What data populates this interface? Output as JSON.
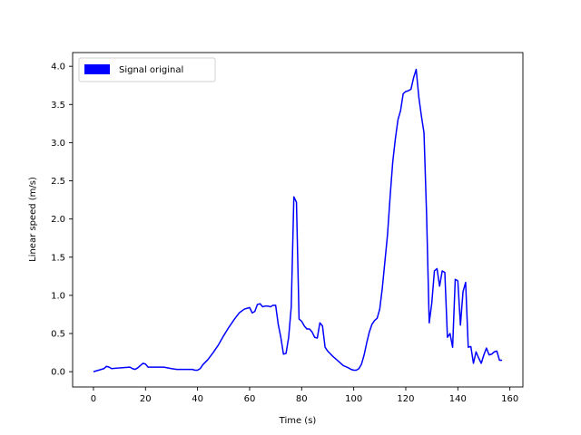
{
  "chart_data": {
    "type": "line",
    "title": "",
    "xlabel": "Time (s)",
    "ylabel": "Linear speed (m/s)",
    "xlim": [
      -8,
      165
    ],
    "ylim": [
      -0.2,
      4.18
    ],
    "xticks": [
      "0",
      "20",
      "40",
      "60",
      "80",
      "100",
      "120",
      "140",
      "160"
    ],
    "xtick_values": [
      0,
      20,
      40,
      60,
      80,
      100,
      120,
      140,
      160
    ],
    "yticks": [
      "0.0",
      "0.5",
      "1.0",
      "1.5",
      "2.0",
      "2.5",
      "3.0",
      "3.5",
      "4.0"
    ],
    "ytick_values": [
      0.0,
      0.5,
      1.0,
      1.5,
      2.0,
      2.5,
      3.0,
      3.5,
      4.0
    ],
    "grid": false,
    "legend": {
      "position": "top-left",
      "entries": [
        {
          "label": "Signal original",
          "color": "#0000ff"
        }
      ]
    },
    "series": [
      {
        "name": "Signal original",
        "color": "#0000ff",
        "x": [
          0,
          2,
          3,
          4,
          5,
          6,
          7,
          10,
          14,
          15,
          16,
          17,
          18,
          19,
          20,
          21,
          22,
          25,
          27,
          30,
          32,
          35,
          38,
          39,
          40,
          41,
          42,
          44,
          46,
          48,
          50,
          52,
          54,
          56,
          58,
          60,
          61,
          62,
          63,
          64,
          65,
          66,
          67,
          68,
          69,
          70,
          71,
          72,
          73,
          74,
          75,
          76,
          77,
          78,
          79,
          80,
          81,
          82,
          83,
          84,
          85,
          86,
          87,
          88,
          89,
          90,
          92,
          94,
          96,
          98,
          99,
          100,
          101,
          102,
          103,
          104,
          105,
          106,
          107,
          108,
          109,
          110,
          111,
          112,
          113,
          114,
          115,
          116,
          117,
          118,
          119,
          120,
          121,
          122,
          123,
          124,
          125,
          126,
          127,
          128,
          129,
          130,
          131,
          132,
          133,
          134,
          135,
          136,
          137,
          138,
          139,
          140,
          141,
          142,
          143,
          144,
          145,
          146,
          147,
          148,
          149,
          150,
          151,
          152,
          153,
          154,
          155,
          156,
          157
        ],
        "values": [
          0.0,
          0.02,
          0.03,
          0.04,
          0.07,
          0.06,
          0.04,
          0.05,
          0.06,
          0.04,
          0.03,
          0.05,
          0.08,
          0.11,
          0.1,
          0.06,
          0.06,
          0.06,
          0.06,
          0.04,
          0.03,
          0.03,
          0.03,
          0.02,
          0.02,
          0.04,
          0.09,
          0.16,
          0.25,
          0.35,
          0.47,
          0.58,
          0.68,
          0.77,
          0.82,
          0.84,
          0.77,
          0.79,
          0.88,
          0.89,
          0.85,
          0.86,
          0.86,
          0.85,
          0.87,
          0.87,
          0.62,
          0.45,
          0.23,
          0.24,
          0.45,
          0.85,
          2.29,
          2.22,
          0.69,
          0.66,
          0.6,
          0.56,
          0.56,
          0.52,
          0.45,
          0.44,
          0.64,
          0.6,
          0.32,
          0.27,
          0.2,
          0.14,
          0.08,
          0.05,
          0.03,
          0.02,
          0.02,
          0.04,
          0.1,
          0.22,
          0.38,
          0.52,
          0.62,
          0.67,
          0.7,
          0.82,
          1.1,
          1.45,
          1.8,
          2.3,
          2.75,
          3.05,
          3.3,
          3.42,
          3.64,
          3.67,
          3.68,
          3.7,
          3.85,
          3.96,
          3.6,
          3.35,
          3.13,
          2.05,
          0.64,
          0.9,
          1.32,
          1.35,
          1.12,
          1.32,
          1.3,
          0.45,
          0.5,
          0.32,
          1.21,
          1.19,
          0.61,
          1.05,
          1.17,
          0.32,
          0.33,
          0.11,
          0.26,
          0.18,
          0.11,
          0.22,
          0.31,
          0.22,
          0.23,
          0.26,
          0.27,
          0.15,
          0.15
        ]
      }
    ]
  }
}
